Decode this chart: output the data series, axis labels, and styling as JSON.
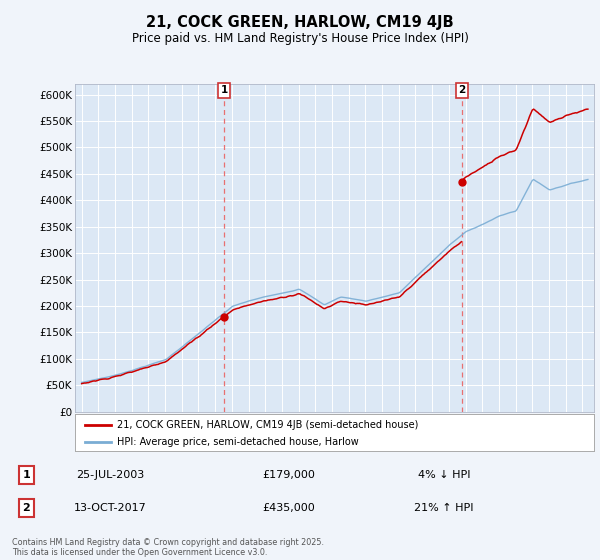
{
  "title": "21, COCK GREEN, HARLOW, CM19 4JB",
  "subtitle": "Price paid vs. HM Land Registry's House Price Index (HPI)",
  "ylim": [
    0,
    620000
  ],
  "yticks": [
    0,
    50000,
    100000,
    150000,
    200000,
    250000,
    300000,
    350000,
    400000,
    450000,
    500000,
    550000,
    600000
  ],
  "ytick_labels": [
    "£0",
    "£50K",
    "£100K",
    "£150K",
    "£200K",
    "£250K",
    "£300K",
    "£350K",
    "£400K",
    "£450K",
    "£500K",
    "£550K",
    "£600K"
  ],
  "xlim_left": 1994.6,
  "xlim_right": 2025.7,
  "bg_color": "#dce8f5",
  "fig_bg_color": "#f0f4fa",
  "grid_color": "#ffffff",
  "sale1_year": 2003.54,
  "sale1_price": 179000,
  "sale1_text": "25-JUL-2003",
  "sale1_amount": "£179,000",
  "sale1_pct": "4% ↓ HPI",
  "sale2_year": 2017.79,
  "sale2_price": 435000,
  "sale2_text": "13-OCT-2017",
  "sale2_amount": "£435,000",
  "sale2_pct": "21% ↑ HPI",
  "legend_line1": "21, COCK GREEN, HARLOW, CM19 4JB (semi-detached house)",
  "legend_line2": "HPI: Average price, semi-detached house, Harlow",
  "footer": "Contains HM Land Registry data © Crown copyright and database right 2025.\nThis data is licensed under the Open Government Licence v3.0.",
  "line_red": "#cc0000",
  "line_blue": "#7aadd4",
  "vline_color": "#e87070",
  "marker_red": "#cc0000"
}
